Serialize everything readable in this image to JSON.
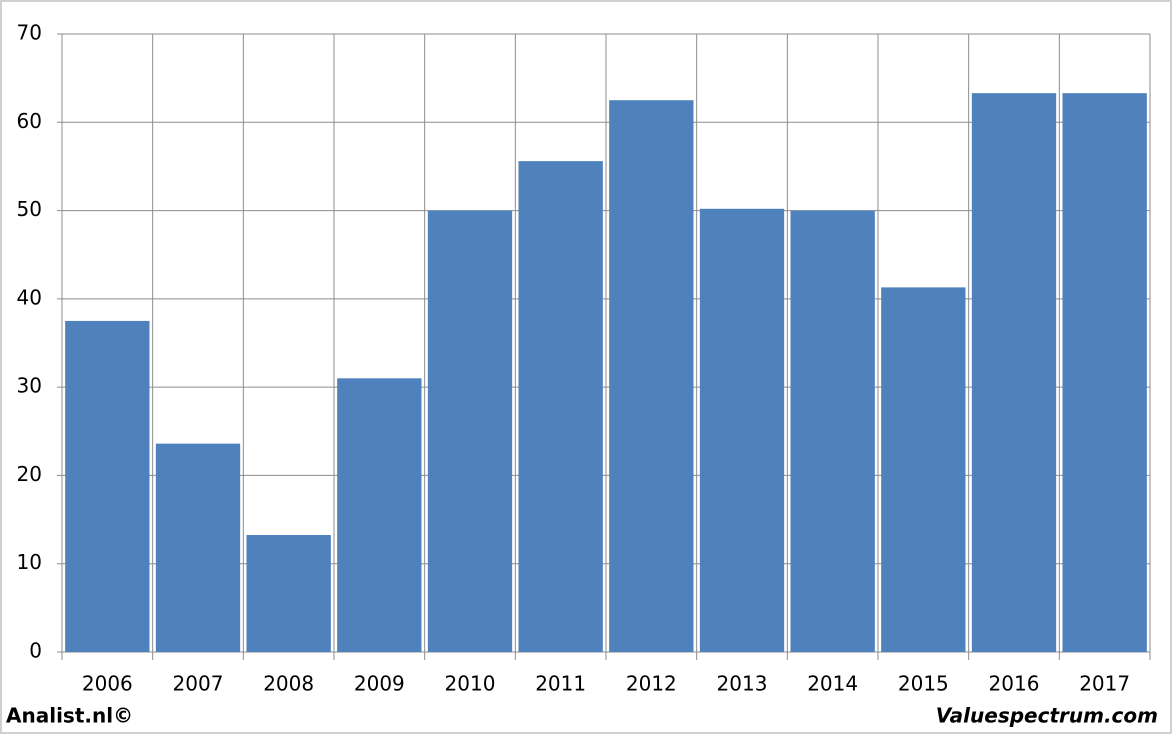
{
  "chart_data": {
    "type": "bar",
    "categories": [
      "2006",
      "2007",
      "2008",
      "2009",
      "2010",
      "2011",
      "2012",
      "2013",
      "2014",
      "2015",
      "2016",
      "2017"
    ],
    "values": [
      37.5,
      23.6,
      13.25,
      31.0,
      50.0,
      55.6,
      62.5,
      50.2,
      50.0,
      41.3,
      63.3,
      63.3
    ],
    "color": "#4f81bd",
    "ylim": [
      0,
      70
    ],
    "yticks": [
      0,
      10,
      20,
      30,
      40,
      50,
      60,
      70
    ],
    "grid": true,
    "footer_left": "Analist.nl©",
    "footer_right": "Valuespectrum.com"
  }
}
